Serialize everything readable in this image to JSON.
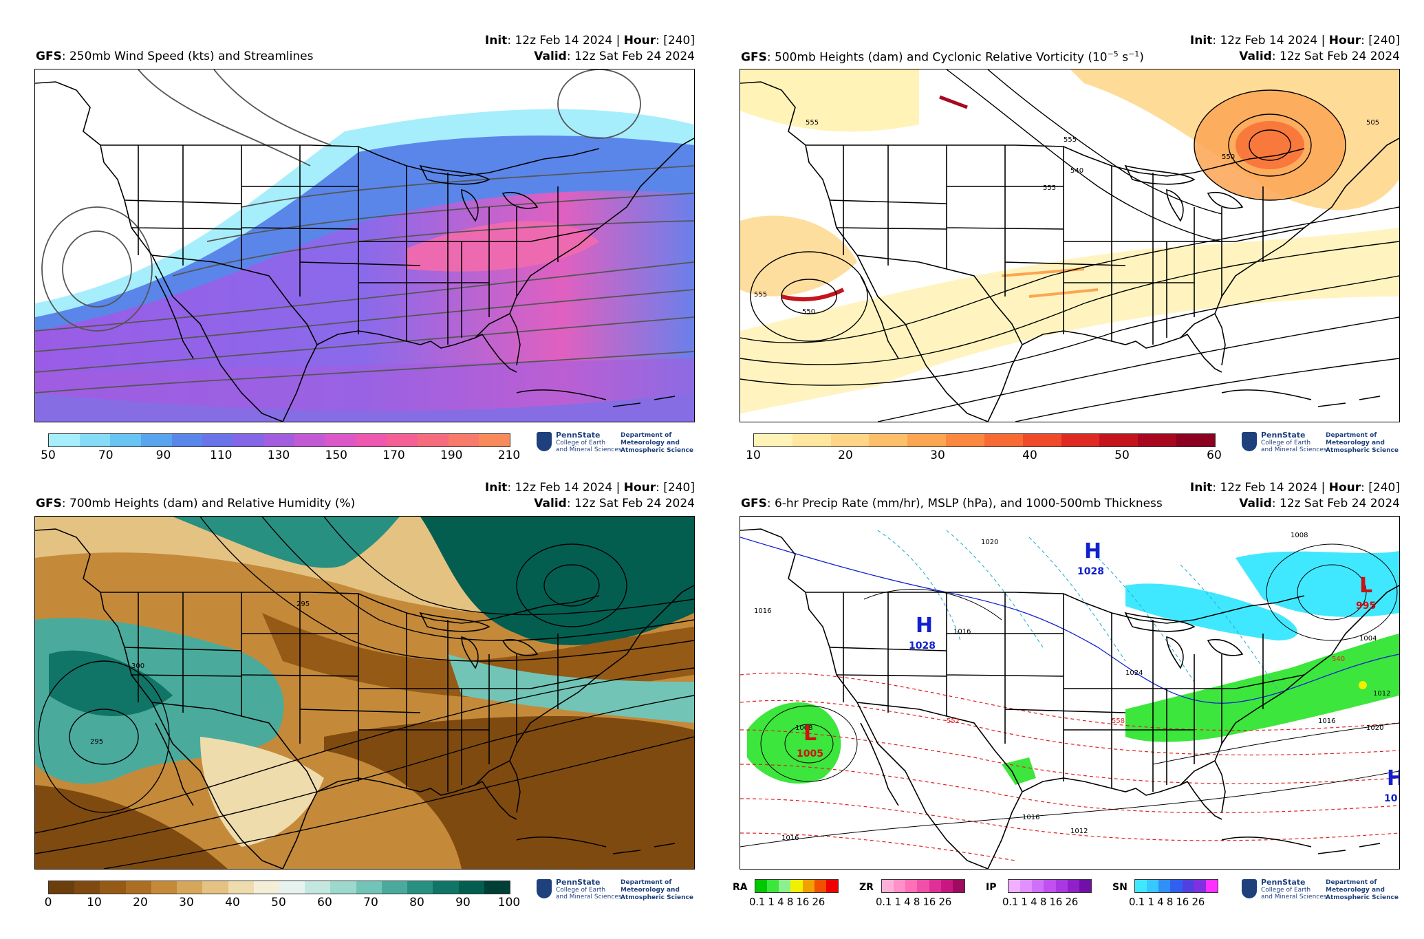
{
  "panels": [
    {
      "model": "GFS",
      "title": ": 250mb Wind Speed (kts) and Streamlines",
      "init_label": "Init",
      "init_value": ": 12z Feb 14 2024 | ",
      "hour_label": "Hour",
      "hour_value": ": [240]",
      "valid_label": "Valid",
      "valid_value": ": 12z Sat Feb 24 2024",
      "colorbar_ticks": [
        "50",
        "70",
        "90",
        "110",
        "130",
        "150",
        "170",
        "190",
        "210"
      ],
      "colorbar_colors": [
        "#a6eefc",
        "#86dcf7",
        "#68c4f2",
        "#58a4ee",
        "#5a86ea",
        "#6a74e8",
        "#8466e6",
        "#a35ee0",
        "#c25ad6",
        "#dc58c8",
        "#ee58b0",
        "#f46096",
        "#f66c7e",
        "#f87a6a",
        "#f88a5c"
      ]
    },
    {
      "model": "GFS",
      "title": ": 500mb Heights (dam) and Cyclonic Relative Vorticity (10",
      "title_sup1": "−5",
      "title_mid": " s",
      "title_sup2": "−1",
      "title_end": ")",
      "init_label": "Init",
      "init_value": ": 12z Feb 14 2024 | ",
      "hour_label": "Hour",
      "hour_value": ": [240]",
      "valid_label": "Valid",
      "valid_value": ": 12z Sat Feb 24 2024",
      "colorbar_ticks": [
        "10",
        "20",
        "30",
        "40",
        "50",
        "60"
      ],
      "colorbar_colors": [
        "#fff3b8",
        "#ffe7a0",
        "#fed686",
        "#fdc06a",
        "#fca552",
        "#fb8840",
        "#f86a34",
        "#ef4a2a",
        "#de2a22",
        "#c4141c",
        "#a70820",
        "#8c0020"
      ],
      "contour_labels": [
        "555",
        "555",
        "540",
        "555",
        "505",
        "555",
        "550",
        "550"
      ]
    },
    {
      "model": "GFS",
      "title": ": 700mb Heights (dam) and Relative Humidity (%)",
      "init_label": "Init",
      "init_value": ": 12z Feb 14 2024 | ",
      "hour_label": "Hour",
      "hour_value": ": [240]",
      "valid_label": "Valid",
      "valid_value": ": 12z Sat Feb 24 2024",
      "colorbar_ticks": [
        "0",
        "10",
        "20",
        "30",
        "40",
        "50",
        "60",
        "70",
        "80",
        "90",
        "100"
      ],
      "colorbar_colors": [
        "#6b3e0c",
        "#7f4a10",
        "#955a16",
        "#ac6e22",
        "#c48a3a",
        "#d6a65a",
        "#e4c282",
        "#efdcad",
        "#f4eed8",
        "#e6f3ef",
        "#c4e8e0",
        "#9cd8cc",
        "#72c4b6",
        "#4aab9c",
        "#289080",
        "#107566",
        "#045e50",
        "#003f35"
      ],
      "contour_labels": [
        "295",
        "300",
        "295"
      ]
    },
    {
      "model": "GFS",
      "title": ": 6-hr Precip Rate (mm/hr), MSLP (hPa), and 1000-500mb Thickness",
      "init_label": "Init",
      "init_value": ": 12z Feb 14 2024 | ",
      "hour_label": "Hour",
      "hour_value": ": [240]",
      "valid_label": "Valid",
      "valid_value": ": 12z Sat Feb 24 2024",
      "pressure_centers": [
        {
          "type": "H",
          "value": "1028",
          "color": "#1020d0"
        },
        {
          "type": "H",
          "value": "1028",
          "color": "#1020d0"
        },
        {
          "type": "L",
          "value": "995",
          "color": "#d01010"
        },
        {
          "type": "L",
          "value": "1005",
          "color": "#d01010"
        },
        {
          "type": "H",
          "value": "10",
          "color": "#1020d0"
        }
      ],
      "isobar_labels": [
        "1016",
        "1020",
        "1008",
        "1016",
        "1024",
        "1004",
        "1012",
        "1016",
        "1020",
        "1016",
        "1012",
        "1008",
        "1016"
      ],
      "thickness_labels": [
        "558",
        "540",
        "552"
      ],
      "precip_legend": [
        {
          "label": "RA",
          "ticks": "0.1 1  4  8  16 26",
          "colors": [
            "#00c800",
            "#3ce63c",
            "#8cf08c",
            "#f0f000",
            "#f0a000",
            "#f05000",
            "#f00000"
          ]
        },
        {
          "label": "ZR",
          "ticks": "0.1 1  4  8  16 26",
          "colors": [
            "#ffb0d8",
            "#ff90c8",
            "#ff70b8",
            "#f050a8",
            "#e03098",
            "#c81880",
            "#a00a60"
          ]
        },
        {
          "label": "IP",
          "ticks": "0.1 1  4  8  16 26",
          "colors": [
            "#f0b0ff",
            "#e090ff",
            "#d070f8",
            "#c050f0",
            "#a838e0",
            "#9020c8",
            "#7010a8"
          ]
        },
        {
          "label": "SN",
          "ticks": "0.1 1  4  8  16 26",
          "colors": [
            "#40e8ff",
            "#38c8ff",
            "#3090f8",
            "#3060f0",
            "#5040e0",
            "#8030e0",
            "#ff30ff"
          ]
        }
      ]
    }
  ],
  "logo": {
    "name": "PennState",
    "college_line1": "College of Earth",
    "college_line2": "and Mineral Sciences",
    "dept_line1": "Department of",
    "dept_line2": "Meteorology and",
    "dept_line3": "Atmospheric Science"
  }
}
